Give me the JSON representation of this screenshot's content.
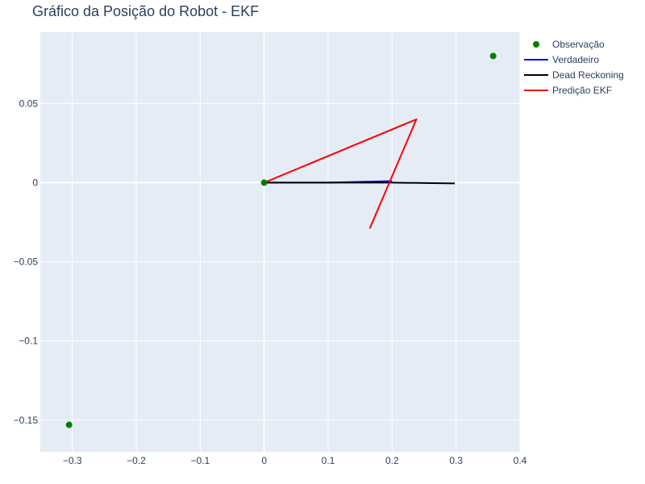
{
  "chart_data": {
    "type": "line",
    "title": "Gráfico da Posição do Robot - EKF",
    "xlabel": "",
    "ylabel": "",
    "xlim": [
      -0.35,
      0.4
    ],
    "ylim": [
      -0.17,
      0.095
    ],
    "x_ticks": [
      -0.3,
      -0.2,
      -0.1,
      0,
      0.1,
      0.2,
      0.3,
      0.4
    ],
    "x_tick_labels": [
      "−0.3",
      "−0.2",
      "−0.1",
      "0",
      "0.1",
      "0.2",
      "0.3",
      "0.4"
    ],
    "y_ticks": [
      -0.15,
      -0.1,
      -0.05,
      0,
      0.05
    ],
    "y_tick_labels": [
      "−0.15",
      "−0.1",
      "−0.05",
      "0",
      "0.05"
    ],
    "grid": true,
    "legend_position": "top-right-outside",
    "plot_background": "#e5ecf6",
    "series": [
      {
        "name": "Observação",
        "mode": "markers",
        "color": "#008000",
        "points": [
          [
            -0.305,
            -0.153
          ],
          [
            0,
            0
          ],
          [
            0.358,
            0.08
          ]
        ]
      },
      {
        "name": "Verdadeiro",
        "mode": "lines",
        "color": "#0000ff",
        "points": [
          [
            0,
            0
          ],
          [
            0.1,
            0
          ],
          [
            0.2,
            0.001
          ]
        ]
      },
      {
        "name": "Dead Reckoning",
        "mode": "lines",
        "color": "#000000",
        "points": [
          [
            0,
            0
          ],
          [
            0.1,
            0
          ],
          [
            0.2,
            0
          ],
          [
            0.298,
            -0.0005
          ]
        ]
      },
      {
        "name": "Predição EKF",
        "mode": "lines",
        "color": "#ff0000",
        "points": [
          [
            0,
            0
          ],
          [
            0.238,
            0.04
          ],
          [
            0.165,
            -0.029
          ]
        ]
      }
    ]
  }
}
